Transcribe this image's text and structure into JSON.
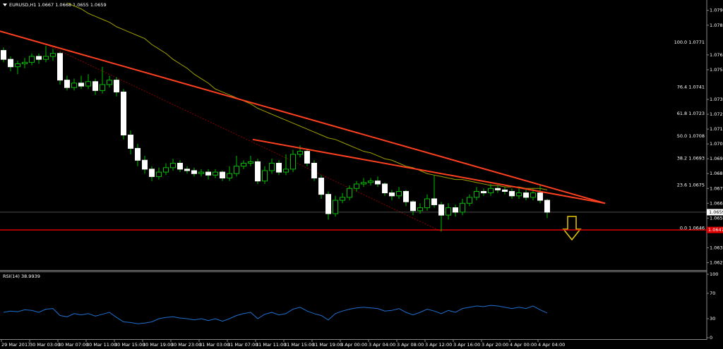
{
  "chart_data": [
    {
      "type": "candlestick",
      "title": "EURUSD,H1  1.0667 1.0668 1.0655 1.0659",
      "categories": [
        "29 Mar 2017",
        null,
        null,
        null,
        "30 Mar 03:00",
        null,
        null,
        null,
        "30 Mar 07:00",
        null,
        null,
        null,
        "30 Mar 11:00",
        null,
        null,
        null,
        "30 Mar 15:00",
        null,
        null,
        null,
        "30 Mar 19:00",
        null,
        null,
        null,
        "30 Mar 23:00",
        null,
        null,
        null,
        "31 Mar 03:00",
        null,
        null,
        null,
        "31 Mar 07:00",
        null,
        null,
        null,
        "31 Mar 11:00",
        null,
        null,
        null,
        "31 Mar 15:00",
        null,
        null,
        null,
        "31 Mar 19:00",
        null,
        null,
        null,
        "3 Apr 00:00",
        null,
        null,
        null,
        "3 Apr 04:00",
        null,
        null,
        null,
        "3 Apr 08:00",
        null,
        null,
        null,
        "3 Apr 12:00",
        null,
        null,
        null,
        "3 Apr 16:00",
        null,
        null,
        null,
        "3 Apr 20:00",
        null,
        null,
        null,
        "4 Apr 00:00",
        null,
        null,
        null,
        "4 Apr 04:00",
        null
      ],
      "open": [
        1.0768,
        1.0762,
        1.0757,
        1.0759,
        1.076,
        1.0764,
        1.0762,
        1.0764,
        1.0766,
        1.0748,
        1.0743,
        1.0746,
        1.0744,
        1.0747,
        1.0741,
        1.0745,
        1.0748,
        1.074,
        1.0711,
        1.0702,
        1.0694,
        1.0688,
        1.0683,
        1.0686,
        1.0689,
        1.0692,
        1.0688,
        1.0687,
        1.0685,
        1.0686,
        1.0684,
        1.0686,
        1.0682,
        1.0685,
        1.069,
        1.0692,
        1.0693,
        1.068,
        1.0687,
        1.0692,
        1.0686,
        1.0688,
        1.0698,
        1.07,
        1.0692,
        1.0682,
        1.0671,
        1.0658,
        1.0667,
        1.0669,
        1.0675,
        1.0678,
        1.0679,
        1.068,
        1.0678,
        1.0672,
        1.067,
        1.0673,
        1.0666,
        1.066,
        1.0662,
        1.0668,
        1.0664,
        1.0657,
        1.0662,
        1.0659,
        1.0665,
        1.0669,
        1.0673,
        1.0672,
        1.0675,
        1.0674,
        1.0673,
        1.067,
        1.0672,
        1.0669,
        1.0672,
        1.0667
      ],
      "high": [
        1.077,
        1.0764,
        1.0761,
        1.0763,
        1.0766,
        1.0766,
        1.0771,
        1.0769,
        1.0767,
        1.0751,
        1.0749,
        1.0751,
        1.0752,
        1.0749,
        1.0757,
        1.0751,
        1.075,
        1.0742,
        1.0714,
        1.0705,
        1.0697,
        1.069,
        1.0689,
        1.0692,
        1.0695,
        1.0694,
        1.069,
        1.0689,
        1.0688,
        1.0688,
        1.0688,
        1.0687,
        1.069,
        1.0697,
        1.0694,
        1.0697,
        1.0695,
        1.069,
        1.0695,
        1.0694,
        1.0698,
        1.0701,
        1.0704,
        1.0702,
        1.0694,
        1.0684,
        1.0673,
        1.067,
        1.0672,
        1.0677,
        1.068,
        1.0682,
        1.0682,
        1.0683,
        1.0679,
        1.0674,
        1.0676,
        1.0674,
        1.0667,
        1.0665,
        1.0671,
        1.0684,
        1.0666,
        1.0665,
        1.0664,
        1.0668,
        1.0671,
        1.0676,
        1.0675,
        1.0678,
        1.0677,
        1.0676,
        1.0675,
        1.0675,
        1.0674,
        1.0675,
        1.0677,
        1.0668
      ],
      "low": [
        1.076,
        1.0754,
        1.0752,
        1.0756,
        1.0758,
        1.0759,
        1.076,
        1.0761,
        1.0745,
        1.0741,
        1.0741,
        1.0742,
        1.0742,
        1.0738,
        1.0739,
        1.0743,
        1.0737,
        1.0708,
        1.0698,
        1.069,
        1.0685,
        1.068,
        1.0681,
        1.0684,
        1.0687,
        1.0686,
        1.0685,
        1.0683,
        1.0683,
        1.0681,
        1.0682,
        1.068,
        1.068,
        1.0683,
        1.0688,
        1.069,
        1.0678,
        1.0678,
        1.0685,
        1.0684,
        1.0684,
        1.0686,
        1.0696,
        1.069,
        1.068,
        1.0668,
        1.0654,
        1.0656,
        1.0665,
        1.0667,
        1.0673,
        1.0676,
        1.0677,
        1.0676,
        1.067,
        1.0667,
        1.0668,
        1.0663,
        1.0657,
        1.0658,
        1.066,
        1.0662,
        1.0646,
        1.0654,
        1.0656,
        1.0657,
        1.0663,
        1.0667,
        1.067,
        1.067,
        1.0672,
        1.0671,
        1.0668,
        1.0668,
        1.0667,
        1.0667,
        1.0665,
        1.0655
      ],
      "close": [
        1.0762,
        1.0757,
        1.0759,
        1.076,
        1.0764,
        1.0762,
        1.0764,
        1.0766,
        1.0748,
        1.0743,
        1.0746,
        1.0744,
        1.0747,
        1.0741,
        1.0745,
        1.0748,
        1.074,
        1.0711,
        1.0702,
        1.0694,
        1.0688,
        1.0683,
        1.0686,
        1.0689,
        1.0692,
        1.0688,
        1.0687,
        1.0685,
        1.0686,
        1.0684,
        1.0686,
        1.0682,
        1.0685,
        1.069,
        1.0692,
        1.0693,
        1.068,
        1.0687,
        1.0692,
        1.0686,
        1.0688,
        1.0698,
        1.07,
        1.0692,
        1.0682,
        1.0671,
        1.0658,
        1.0667,
        1.0669,
        1.0675,
        1.0678,
        1.0679,
        1.068,
        1.0678,
        1.0672,
        1.067,
        1.0673,
        1.0666,
        1.066,
        1.0662,
        1.0668,
        1.0664,
        1.0657,
        1.0662,
        1.0659,
        1.0665,
        1.0669,
        1.0673,
        1.0672,
        1.0675,
        1.0674,
        1.0673,
        1.067,
        1.0672,
        1.0669,
        1.0672,
        1.0667,
        1.0659
      ],
      "up_color": "#00c000",
      "down_color": "#ffffff",
      "ma": {
        "color": "#a0a000",
        "values": [
          null,
          null,
          null,
          null,
          null,
          null,
          null,
          null,
          null,
          1.08,
          1.0798,
          1.0796,
          1.0793,
          1.0791,
          1.0789,
          1.0787,
          1.0784,
          1.0782,
          1.078,
          1.0778,
          1.0776,
          1.0772,
          1.0769,
          1.0766,
          1.0762,
          1.0759,
          1.0756,
          1.0752,
          1.0749,
          1.0746,
          1.0742,
          1.074,
          1.0738,
          1.0736,
          1.0734,
          1.0732,
          1.0729,
          1.0727,
          1.0725,
          1.0723,
          1.0721,
          1.0719,
          1.0717,
          1.0715,
          1.0713,
          1.0711,
          1.0709,
          1.0708,
          1.0706,
          1.0704,
          1.0702,
          1.07,
          1.0699,
          1.0697,
          1.0695,
          1.0694,
          1.0692,
          1.069,
          1.0689,
          1.0687,
          1.0685,
          1.0684,
          1.0683,
          1.0682,
          1.0681,
          1.0681,
          1.068,
          1.0679,
          1.0678,
          1.0677,
          1.0677,
          1.0676,
          1.0676,
          1.0676,
          1.0675,
          1.0675,
          1.0675,
          1.0674
        ]
      },
      "trendlines": [
        {
          "color": "#ff4020",
          "points": [
            [
              -0.5,
              1.0781
            ],
            [
              85.2,
              1.0665
            ]
          ]
        },
        {
          "color": "#ff4020",
          "points": [
            [
              35.3,
              1.0708
            ],
            [
              85.2,
              1.0665
            ]
          ]
        }
      ],
      "fib_line": {
        "color": "#8b0000",
        "points": [
          [
            6.5,
            1.0771
          ],
          [
            62,
            1.0646
          ]
        ]
      },
      "fib_levels": [
        {
          "value": 1.0771,
          "label": "100.0  1.0771"
        },
        {
          "value": 1.0741,
          "label": "76.4  1.0741"
        },
        {
          "value": 1.0723,
          "label": "61.8  1.0723"
        },
        {
          "value": 1.0708,
          "label": "50.0  1.0708"
        },
        {
          "value": 1.0693,
          "label": "38.2  1.0693"
        },
        {
          "value": 1.0675,
          "label": "23.6  1.0675"
        },
        {
          "value": 1.0646,
          "label": "0.0  1.0646"
        }
      ],
      "current_price": 1.0659,
      "support": {
        "value": 1.0647,
        "color": "#e00000"
      },
      "ylim": [
        1.062,
        1.0802
      ],
      "yticks": [
        1.0795,
        1.0785,
        1.0765,
        1.0755,
        1.0735,
        1.0725,
        1.0715,
        1.0705,
        1.0695,
        1.0685,
        1.0675,
        1.0665,
        1.0655,
        1.0635,
        1.0625
      ]
    },
    {
      "type": "line",
      "title": "RSI(14) 38.9939",
      "series": [
        {
          "color": "#1e70d0",
          "values": [
            40,
            42,
            41,
            44,
            43,
            40,
            45,
            46,
            35,
            33,
            38,
            36,
            38,
            34,
            37,
            40,
            32,
            25,
            24,
            22,
            23,
            25,
            30,
            32,
            33,
            31,
            30,
            28,
            30,
            27,
            30,
            26,
            30,
            35,
            38,
            40,
            30,
            37,
            40,
            36,
            38,
            45,
            48,
            42,
            38,
            35,
            28,
            38,
            42,
            45,
            47,
            48,
            47,
            46,
            42,
            43,
            46,
            40,
            36,
            40,
            45,
            42,
            38,
            43,
            40,
            46,
            48,
            50,
            49,
            51,
            50,
            48,
            46,
            48,
            46,
            50,
            44,
            38.9939
          ]
        }
      ],
      "ylim": [
        0,
        100
      ],
      "yticks": [
        100,
        70,
        30,
        0
      ]
    }
  ]
}
